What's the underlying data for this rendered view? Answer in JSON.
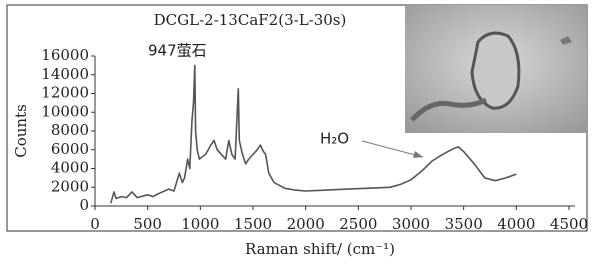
{
  "chart_data": {
    "type": "line",
    "title": "DCGL-2-13CaF2(3-L-30s)",
    "x_label": "Raman shift/ (cm⁻¹)",
    "y_label": "Counts",
    "annotations": [
      "947萤石",
      "H₂O"
    ],
    "color": "#555555",
    "x": [
      150,
      180,
      200,
      250,
      300,
      350,
      400,
      500,
      550,
      600,
      700,
      750,
      800,
      830,
      850,
      880,
      900,
      920,
      935,
      947,
      955,
      970,
      990,
      1050,
      1100,
      1130,
      1160,
      1200,
      1240,
      1270,
      1300,
      1330,
      1360,
      1370,
      1400,
      1430,
      1460,
      1500,
      1540,
      1570,
      1600,
      1620,
      1650,
      1700,
      1800,
      1900,
      2000,
      2200,
      2400,
      2600,
      2800,
      2900,
      3000,
      3100,
      3200,
      3300,
      3400,
      3450,
      3500,
      3600,
      3700,
      3800,
      3900,
      4000
    ],
    "values": [
      300,
      1500,
      800,
      1000,
      900,
      1500,
      900,
      1200,
      1000,
      1300,
      1800,
      1600,
      3500,
      2500,
      3000,
      5000,
      4000,
      9000,
      11000,
      15000,
      8000,
      6000,
      5000,
      5500,
      6500,
      7000,
      6000,
      5500,
      5000,
      7000,
      5500,
      5000,
      12500,
      7000,
      5500,
      4500,
      5000,
      5500,
      6000,
      6500,
      5800,
      5500,
      3500,
      2500,
      1900,
      1700,
      1600,
      1700,
      1800,
      1900,
      2000,
      2300,
      2800,
      3700,
      4800,
      5500,
      6100,
      6300,
      5800,
      4500,
      3000,
      2700,
      3000,
      3400
    ],
    "xlim": [
      0,
      4500
    ],
    "ylim": [
      0,
      16000
    ],
    "xticks": [
      0,
      500,
      1000,
      1500,
      2000,
      2500,
      3000,
      3500,
      4000,
      4500
    ],
    "yticks": [
      0,
      2000,
      4000,
      6000,
      8000,
      10000,
      12000,
      14000,
      16000
    ]
  }
}
